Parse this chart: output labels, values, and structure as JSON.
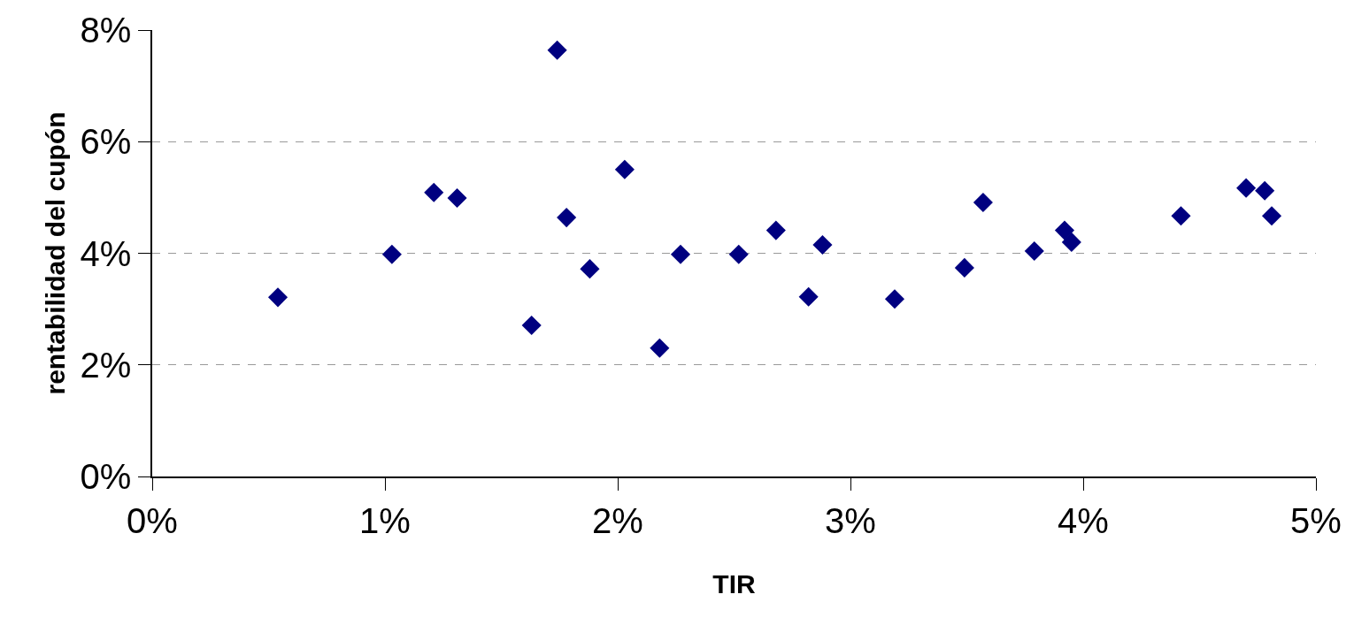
{
  "chart_data": {
    "type": "scatter",
    "xlabel": "TIR",
    "ylabel": "rentabilidad del cupón",
    "x": [
      0.54,
      1.03,
      1.21,
      1.31,
      1.63,
      1.74,
      1.78,
      1.88,
      2.03,
      2.18,
      2.27,
      2.52,
      2.68,
      2.82,
      2.88,
      3.19,
      3.49,
      3.57,
      3.79,
      3.92,
      3.95,
      4.42,
      4.7,
      4.78,
      4.81
    ],
    "series": [
      {
        "color": "#000080",
        "values": [
          3.21,
          3.98,
          5.09,
          4.99,
          2.71,
          7.64,
          4.64,
          3.72,
          5.5,
          2.3,
          3.98,
          3.98,
          4.41,
          3.22,
          4.15,
          3.18,
          3.74,
          4.91,
          4.04,
          4.41,
          4.2,
          4.67,
          5.17,
          5.12,
          4.67
        ]
      }
    ],
    "xlim": [
      0,
      5
    ],
    "ylim": [
      0,
      8
    ],
    "xticks": [
      {
        "value": 0,
        "label": "0%"
      },
      {
        "value": 1,
        "label": "1%"
      },
      {
        "value": 2,
        "label": "2%"
      },
      {
        "value": 3,
        "label": "3%"
      },
      {
        "value": 4,
        "label": "4%"
      },
      {
        "value": 5,
        "label": "5%"
      }
    ],
    "yticks": [
      {
        "value": 0,
        "label": "0%"
      },
      {
        "value": 2,
        "label": "2%"
      },
      {
        "value": 4,
        "label": "4%"
      },
      {
        "value": 6,
        "label": "6%"
      },
      {
        "value": 8,
        "label": "8%"
      }
    ],
    "grid": "y",
    "marker": "diamond"
  }
}
